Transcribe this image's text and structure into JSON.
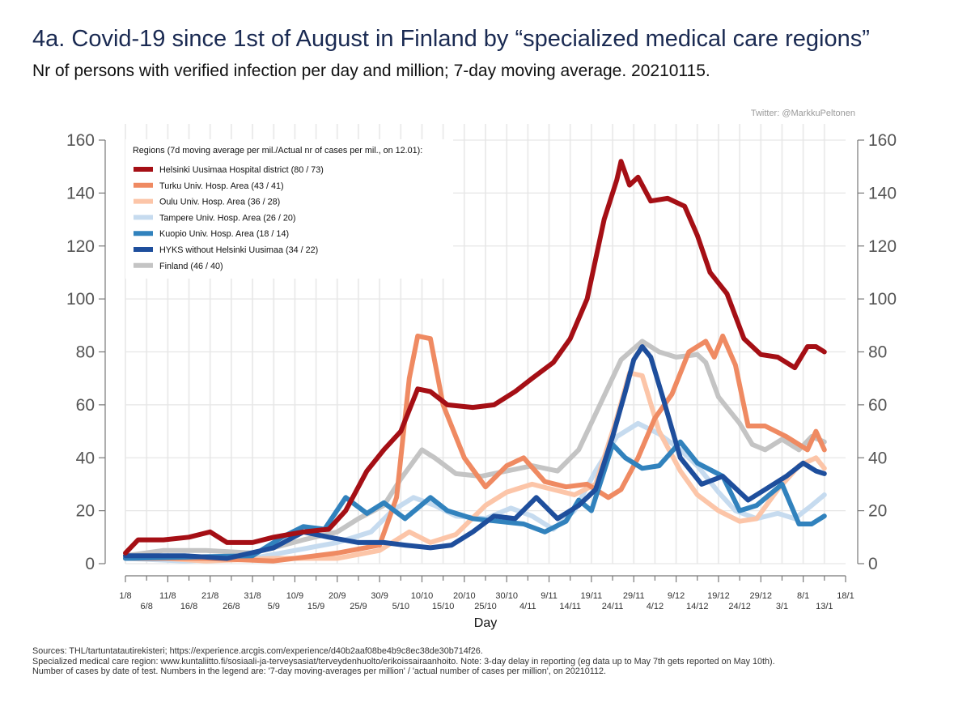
{
  "title": "4a. Covid-19 since 1st of August in Finland by “specialized medical care regions”",
  "subtitle": "Nr of persons with verified infection per day and million; 7-day moving average. 20210115.",
  "credit": "Twitter: @MarkkuPeltonen",
  "sources": [
    "Sources: THL/tartuntatautirekisteri; https://experience.arcgis.com/experience/d40b2aaf08be4b9c8ec38de30b714f26.",
    "Specialized medical care region: www.kuntaliitto.fi/sosiaali-ja-terveysasiat/terveydenhuolto/erikoissairaanhoito. Note: 3-day delay in reporting (eg data up to May 7th gets reported on May 10th).",
    "Number of cases by date of test. Numbers in the legend are: '7-day moving-averages per million' / 'actual number of cases per million',  on 20210112."
  ],
  "chart_data": {
    "type": "line",
    "xlabel": "Day",
    "ylabel": "",
    "ylim": [
      0,
      160
    ],
    "yticks": [
      0,
      20,
      40,
      60,
      80,
      100,
      120,
      140,
      160
    ],
    "x_start": "2020-08-01",
    "x_end": "2021-01-13",
    "x_axis_end": "2021-01-18",
    "xticks_upper": [
      {
        "date": "2020-08-01",
        "label": "1/8"
      },
      {
        "date": "2020-08-11",
        "label": "11/8"
      },
      {
        "date": "2020-08-21",
        "label": "21/8"
      },
      {
        "date": "2020-08-31",
        "label": "31/8"
      },
      {
        "date": "2020-09-10",
        "label": "10/9"
      },
      {
        "date": "2020-09-20",
        "label": "20/9"
      },
      {
        "date": "2020-09-30",
        "label": "30/9"
      },
      {
        "date": "2020-10-10",
        "label": "10/10"
      },
      {
        "date": "2020-10-20",
        "label": "20/10"
      },
      {
        "date": "2020-10-30",
        "label": "30/10"
      },
      {
        "date": "2020-11-09",
        "label": "9/11"
      },
      {
        "date": "2020-11-19",
        "label": "19/11"
      },
      {
        "date": "2020-11-29",
        "label": "29/11"
      },
      {
        "date": "2020-12-09",
        "label": "9/12"
      },
      {
        "date": "2020-12-19",
        "label": "19/12"
      },
      {
        "date": "2020-12-29",
        "label": "29/12"
      },
      {
        "date": "2021-01-08",
        "label": "8/1"
      },
      {
        "date": "2021-01-18",
        "label": "18/1"
      }
    ],
    "xticks_lower": [
      {
        "date": "2020-08-06",
        "label": "6/8"
      },
      {
        "date": "2020-08-16",
        "label": "16/8"
      },
      {
        "date": "2020-08-26",
        "label": "26/8"
      },
      {
        "date": "2020-09-05",
        "label": "5/9"
      },
      {
        "date": "2020-09-15",
        "label": "15/9"
      },
      {
        "date": "2020-09-25",
        "label": "25/9"
      },
      {
        "date": "2020-10-05",
        "label": "5/10"
      },
      {
        "date": "2020-10-15",
        "label": "15/10"
      },
      {
        "date": "2020-10-25",
        "label": "25/10"
      },
      {
        "date": "2020-11-04",
        "label": "4/11"
      },
      {
        "date": "2020-11-14",
        "label": "14/11"
      },
      {
        "date": "2020-11-24",
        "label": "24/11"
      },
      {
        "date": "2020-12-04",
        "label": "4/12"
      },
      {
        "date": "2020-12-14",
        "label": "14/12"
      },
      {
        "date": "2020-12-24",
        "label": "24/12"
      },
      {
        "date": "2021-01-03",
        "label": "3/1"
      },
      {
        "date": "2021-01-13",
        "label": "13/1"
      }
    ],
    "grid": true,
    "legend_title": "Regions (7d moving average per mil./Actual nr of cases per mil., on 12.01):",
    "legend_position": "top-left",
    "series": [
      {
        "name": "Finland (46 / 40)",
        "color": "#c4c4c4",
        "points": [
          [
            "2020-08-01",
            3
          ],
          [
            "2020-08-10",
            5
          ],
          [
            "2020-08-20",
            5
          ],
          [
            "2020-08-31",
            4
          ],
          [
            "2020-09-05",
            6
          ],
          [
            "2020-09-12",
            9
          ],
          [
            "2020-09-20",
            12
          ],
          [
            "2020-09-25",
            17
          ],
          [
            "2020-10-01",
            22
          ],
          [
            "2020-10-05",
            32
          ],
          [
            "2020-10-10",
            43
          ],
          [
            "2020-10-13",
            40
          ],
          [
            "2020-10-18",
            34
          ],
          [
            "2020-10-24",
            33
          ],
          [
            "2020-10-30",
            35
          ],
          [
            "2020-11-05",
            37
          ],
          [
            "2020-11-11",
            35
          ],
          [
            "2020-11-16",
            43
          ],
          [
            "2020-11-21",
            60
          ],
          [
            "2020-11-26",
            77
          ],
          [
            "2020-12-01",
            84
          ],
          [
            "2020-12-05",
            80
          ],
          [
            "2020-12-09",
            78
          ],
          [
            "2020-12-14",
            79
          ],
          [
            "2020-12-16",
            76
          ],
          [
            "2020-12-19",
            63
          ],
          [
            "2020-12-24",
            53
          ],
          [
            "2020-12-27",
            45
          ],
          [
            "2020-12-30",
            43
          ],
          [
            "2021-01-03",
            47
          ],
          [
            "2021-01-07",
            43
          ],
          [
            "2021-01-10",
            48
          ],
          [
            "2021-01-13",
            46
          ]
        ]
      },
      {
        "name": "Tampere Univ. Hosp. Area (26 / 20)",
        "color": "#c6dbef",
        "points": [
          [
            "2020-08-01",
            2
          ],
          [
            "2020-08-15",
            1
          ],
          [
            "2020-08-31",
            2
          ],
          [
            "2020-09-10",
            5
          ],
          [
            "2020-09-20",
            8
          ],
          [
            "2020-09-28",
            12
          ],
          [
            "2020-10-03",
            20
          ],
          [
            "2020-10-08",
            25
          ],
          [
            "2020-10-13",
            22
          ],
          [
            "2020-10-18",
            18
          ],
          [
            "2020-10-25",
            17
          ],
          [
            "2020-10-31",
            21
          ],
          [
            "2020-11-05",
            18
          ],
          [
            "2020-11-10",
            13
          ],
          [
            "2020-11-15",
            20
          ],
          [
            "2020-11-20",
            35
          ],
          [
            "2020-11-25",
            48
          ],
          [
            "2020-11-30",
            53
          ],
          [
            "2020-12-05",
            49
          ],
          [
            "2020-12-10",
            43
          ],
          [
            "2020-12-14",
            37
          ],
          [
            "2020-12-19",
            27
          ],
          [
            "2020-12-23",
            20
          ],
          [
            "2020-12-28",
            17
          ],
          [
            "2021-01-02",
            19
          ],
          [
            "2021-01-06",
            17
          ],
          [
            "2021-01-10",
            22
          ],
          [
            "2021-01-13",
            26
          ]
        ]
      },
      {
        "name": "Oulu Univ. Hosp. Area (36 / 28)",
        "color": "#fcc5a8",
        "points": [
          [
            "2020-08-01",
            3
          ],
          [
            "2020-08-20",
            1
          ],
          [
            "2020-09-05",
            2
          ],
          [
            "2020-09-20",
            2
          ],
          [
            "2020-09-30",
            5
          ],
          [
            "2020-10-07",
            12
          ],
          [
            "2020-10-12",
            8
          ],
          [
            "2020-10-18",
            11
          ],
          [
            "2020-10-25",
            22
          ],
          [
            "2020-10-30",
            27
          ],
          [
            "2020-11-05",
            30
          ],
          [
            "2020-11-10",
            28
          ],
          [
            "2020-11-15",
            26
          ],
          [
            "2020-11-20",
            30
          ],
          [
            "2020-11-25",
            55
          ],
          [
            "2020-11-28",
            72
          ],
          [
            "2020-12-01",
            71
          ],
          [
            "2020-12-05",
            50
          ],
          [
            "2020-12-10",
            35
          ],
          [
            "2020-12-14",
            26
          ],
          [
            "2020-12-19",
            20
          ],
          [
            "2020-12-24",
            16
          ],
          [
            "2020-12-28",
            17
          ],
          [
            "2021-01-02",
            28
          ],
          [
            "2021-01-07",
            37
          ],
          [
            "2021-01-11",
            40
          ],
          [
            "2021-01-13",
            36
          ]
        ]
      },
      {
        "name": "Turku Univ. Hosp. Area (43 / 41)",
        "color": "#ef8a62",
        "points": [
          [
            "2020-08-01",
            2
          ],
          [
            "2020-08-20",
            2
          ],
          [
            "2020-09-05",
            1
          ],
          [
            "2020-09-20",
            4
          ],
          [
            "2020-09-30",
            7
          ],
          [
            "2020-10-04",
            25
          ],
          [
            "2020-10-07",
            70
          ],
          [
            "2020-10-09",
            86
          ],
          [
            "2020-10-12",
            85
          ],
          [
            "2020-10-15",
            60
          ],
          [
            "2020-10-20",
            40
          ],
          [
            "2020-10-25",
            29
          ],
          [
            "2020-10-30",
            37
          ],
          [
            "2020-11-03",
            40
          ],
          [
            "2020-11-08",
            31
          ],
          [
            "2020-11-13",
            29
          ],
          [
            "2020-11-18",
            30
          ],
          [
            "2020-11-23",
            25
          ],
          [
            "2020-11-26",
            28
          ],
          [
            "2020-11-30",
            40
          ],
          [
            "2020-12-04",
            55
          ],
          [
            "2020-12-08",
            64
          ],
          [
            "2020-12-12",
            80
          ],
          [
            "2020-12-16",
            84
          ],
          [
            "2020-12-18",
            78
          ],
          [
            "2020-12-20",
            86
          ],
          [
            "2020-12-23",
            75
          ],
          [
            "2020-12-26",
            52
          ],
          [
            "2020-12-30",
            52
          ],
          [
            "2021-01-04",
            48
          ],
          [
            "2021-01-09",
            43
          ],
          [
            "2021-01-11",
            50
          ],
          [
            "2021-01-13",
            43
          ]
        ]
      },
      {
        "name": "Kuopio Univ. Hosp. Area (18 / 14)",
        "color": "#3182bd",
        "points": [
          [
            "2020-08-01",
            2
          ],
          [
            "2020-08-31",
            3
          ],
          [
            "2020-09-07",
            10
          ],
          [
            "2020-09-12",
            14
          ],
          [
            "2020-09-17",
            13
          ],
          [
            "2020-09-22",
            25
          ],
          [
            "2020-09-27",
            19
          ],
          [
            "2020-10-01",
            23
          ],
          [
            "2020-10-06",
            17
          ],
          [
            "2020-10-12",
            25
          ],
          [
            "2020-10-16",
            20
          ],
          [
            "2020-10-22",
            17
          ],
          [
            "2020-10-28",
            16
          ],
          [
            "2020-11-03",
            15
          ],
          [
            "2020-11-08",
            12
          ],
          [
            "2020-11-13",
            16
          ],
          [
            "2020-11-16",
            24
          ],
          [
            "2020-11-19",
            20
          ],
          [
            "2020-11-24",
            45
          ],
          [
            "2020-11-27",
            40
          ],
          [
            "2020-12-01",
            36
          ],
          [
            "2020-12-05",
            37
          ],
          [
            "2020-12-10",
            46
          ],
          [
            "2020-12-14",
            38
          ],
          [
            "2020-12-20",
            33
          ],
          [
            "2020-12-24",
            20
          ],
          [
            "2020-12-28",
            22
          ],
          [
            "2021-01-03",
            30
          ],
          [
            "2021-01-07",
            15
          ],
          [
            "2021-01-10",
            15
          ],
          [
            "2021-01-13",
            18
          ]
        ]
      },
      {
        "name": "HYKS without Helsinki Uusimaa (34 / 22)",
        "color": "#1e4e9c",
        "points": [
          [
            "2020-08-01",
            3
          ],
          [
            "2020-08-15",
            3
          ],
          [
            "2020-08-25",
            2
          ],
          [
            "2020-09-05",
            6
          ],
          [
            "2020-09-12",
            12
          ],
          [
            "2020-09-18",
            10
          ],
          [
            "2020-09-25",
            8
          ],
          [
            "2020-10-01",
            8
          ],
          [
            "2020-10-06",
            7
          ],
          [
            "2020-10-12",
            6
          ],
          [
            "2020-10-17",
            7
          ],
          [
            "2020-10-22",
            12
          ],
          [
            "2020-10-27",
            18
          ],
          [
            "2020-11-01",
            17
          ],
          [
            "2020-11-06",
            25
          ],
          [
            "2020-11-11",
            17
          ],
          [
            "2020-11-16",
            22
          ],
          [
            "2020-11-20",
            28
          ],
          [
            "2020-11-24",
            48
          ],
          [
            "2020-11-27",
            65
          ],
          [
            "2020-11-29",
            77
          ],
          [
            "2020-12-01",
            82
          ],
          [
            "2020-12-03",
            78
          ],
          [
            "2020-12-06",
            62
          ],
          [
            "2020-12-10",
            40
          ],
          [
            "2020-12-15",
            30
          ],
          [
            "2020-12-20",
            33
          ],
          [
            "2020-12-26",
            24
          ],
          [
            "2020-12-30",
            28
          ],
          [
            "2021-01-04",
            33
          ],
          [
            "2021-01-08",
            38
          ],
          [
            "2021-01-11",
            35
          ],
          [
            "2021-01-13",
            34
          ]
        ]
      },
      {
        "name": "Helsinki Uusimaa Hospital district (80 / 73)",
        "color": "#a50f15",
        "points": [
          [
            "2020-08-01",
            4
          ],
          [
            "2020-08-04",
            9
          ],
          [
            "2020-08-10",
            9
          ],
          [
            "2020-08-16",
            10
          ],
          [
            "2020-08-21",
            12
          ],
          [
            "2020-08-25",
            8
          ],
          [
            "2020-08-31",
            8
          ],
          [
            "2020-09-05",
            10
          ],
          [
            "2020-09-12",
            12
          ],
          [
            "2020-09-18",
            13
          ],
          [
            "2020-09-22",
            20
          ],
          [
            "2020-09-27",
            35
          ],
          [
            "2020-10-01",
            43
          ],
          [
            "2020-10-05",
            50
          ],
          [
            "2020-10-09",
            66
          ],
          [
            "2020-10-12",
            65
          ],
          [
            "2020-10-16",
            60
          ],
          [
            "2020-10-22",
            59
          ],
          [
            "2020-10-27",
            60
          ],
          [
            "2020-11-01",
            65
          ],
          [
            "2020-11-05",
            70
          ],
          [
            "2020-11-10",
            76
          ],
          [
            "2020-11-14",
            85
          ],
          [
            "2020-11-18",
            100
          ],
          [
            "2020-11-22",
            130
          ],
          [
            "2020-11-25",
            145
          ],
          [
            "2020-11-26",
            152
          ],
          [
            "2020-11-28",
            143
          ],
          [
            "2020-11-30",
            146
          ],
          [
            "2020-12-03",
            137
          ],
          [
            "2020-12-07",
            138
          ],
          [
            "2020-12-11",
            135
          ],
          [
            "2020-12-14",
            124
          ],
          [
            "2020-12-17",
            110
          ],
          [
            "2020-12-21",
            102
          ],
          [
            "2020-12-25",
            85
          ],
          [
            "2020-12-29",
            79
          ],
          [
            "2021-01-02",
            78
          ],
          [
            "2021-01-06",
            74
          ],
          [
            "2021-01-09",
            82
          ],
          [
            "2021-01-11",
            82
          ],
          [
            "2021-01-13",
            80
          ]
        ]
      }
    ]
  }
}
